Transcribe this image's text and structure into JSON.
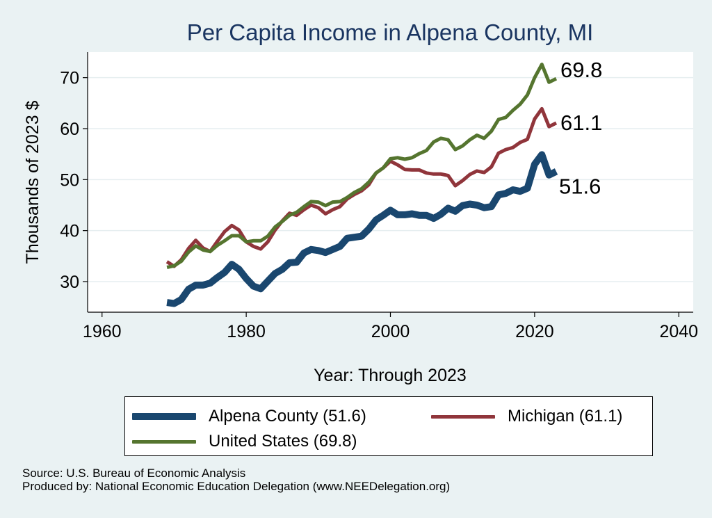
{
  "chart_data": {
    "type": "line",
    "title": "Per Capita Income in Alpena County, MI",
    "xlabel": "Year: Through 2023",
    "ylabel": "Thousands of 2023 $",
    "xlim": [
      1958,
      2042
    ],
    "ylim": [
      24,
      75
    ],
    "xticks": [
      1960,
      1980,
      2000,
      2020,
      2040
    ],
    "yticks": [
      30,
      40,
      50,
      60,
      70
    ],
    "grid": true,
    "legend_position": "bottom",
    "x": [
      1969,
      1970,
      1971,
      1972,
      1973,
      1974,
      1975,
      1976,
      1977,
      1978,
      1979,
      1980,
      1981,
      1982,
      1983,
      1984,
      1985,
      1986,
      1987,
      1988,
      1989,
      1990,
      1991,
      1992,
      1993,
      1994,
      1995,
      1996,
      1997,
      1998,
      1999,
      2000,
      2001,
      2002,
      2003,
      2004,
      2005,
      2006,
      2007,
      2008,
      2009,
      2010,
      2011,
      2012,
      2013,
      2014,
      2015,
      2016,
      2017,
      2018,
      2019,
      2020,
      2021,
      2022,
      2023
    ],
    "series": [
      {
        "name": "Alpena County (51.6)",
        "color": "#1a476f",
        "end_label": "51.6",
        "values": [
          25.9,
          25.7,
          26.5,
          28.5,
          29.3,
          29.3,
          29.7,
          30.8,
          31.8,
          33.4,
          32.4,
          30.6,
          29.1,
          28.6,
          30.1,
          31.6,
          32.4,
          33.7,
          33.8,
          35.6,
          36.3,
          36.1,
          35.7,
          36.3,
          36.9,
          38.5,
          38.7,
          38.9,
          40.3,
          42.1,
          43.0,
          44.0,
          43.1,
          43.1,
          43.3,
          43.0,
          43.0,
          42.4,
          43.2,
          44.4,
          43.8,
          44.9,
          45.2,
          45.0,
          44.5,
          44.7,
          47.0,
          47.3,
          48.0,
          47.7,
          48.3,
          53.0,
          54.9,
          50.9,
          51.6
        ]
      },
      {
        "name": "Michigan (61.1)",
        "color": "#90353b",
        "end_label": "61.1",
        "values": [
          33.9,
          33.0,
          34.3,
          36.5,
          38.1,
          36.6,
          35.9,
          37.9,
          39.8,
          41.0,
          40.1,
          37.8,
          36.9,
          36.4,
          37.8,
          40.1,
          41.9,
          43.4,
          43.0,
          44.1,
          45.0,
          44.5,
          43.3,
          44.1,
          44.7,
          46.2,
          47.1,
          47.8,
          49.0,
          51.3,
          52.3,
          53.6,
          52.9,
          52.0,
          51.9,
          51.9,
          51.3,
          51.1,
          51.1,
          50.8,
          48.8,
          49.8,
          51.0,
          51.7,
          51.4,
          52.5,
          55.2,
          55.9,
          56.3,
          57.3,
          57.9,
          61.9,
          63.9,
          60.4,
          61.1
        ]
      },
      {
        "name": "United States (69.8)",
        "color": "#55752f",
        "end_label": "69.8",
        "values": [
          32.8,
          33.1,
          34.0,
          35.8,
          37.0,
          36.2,
          35.9,
          37.1,
          38.0,
          39.0,
          39.0,
          37.8,
          38.0,
          38.0,
          38.9,
          40.7,
          41.8,
          43.0,
          43.6,
          44.7,
          45.7,
          45.6,
          44.9,
          45.6,
          45.7,
          46.5,
          47.5,
          48.2,
          49.5,
          51.3,
          52.3,
          54.1,
          54.3,
          54.0,
          54.3,
          55.1,
          55.7,
          57.4,
          58.1,
          57.8,
          55.9,
          56.6,
          57.8,
          58.7,
          58.1,
          59.5,
          61.8,
          62.2,
          63.6,
          64.8,
          66.6,
          70.0,
          72.6,
          69.1,
          69.8
        ]
      }
    ]
  },
  "legend": {
    "items": [
      {
        "label": "Alpena County (51.6)"
      },
      {
        "label": "Michigan (61.1)"
      },
      {
        "label": "United States (69.8)"
      }
    ]
  },
  "source": {
    "line1": "Source: U.S. Bureau of Economic Analysis",
    "line2": "Produced by: National Economic Education Delegation (www.NEEDelegation.org)"
  }
}
